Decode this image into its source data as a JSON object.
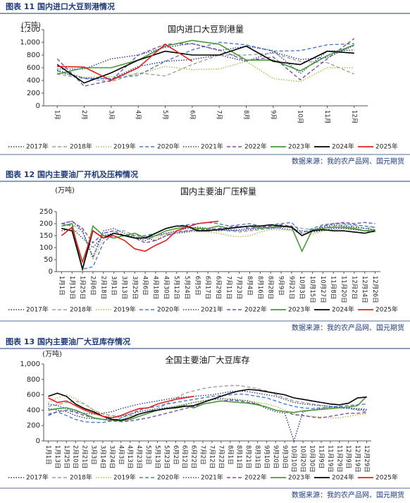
{
  "chart_data": [
    {
      "type": "line",
      "caption": "图表 11 国内进口大豆到港情况",
      "title": "国内进口大豆到港量",
      "y_unit": "(万吨)",
      "source": "数据来源：我的农产品网、国元期货",
      "grid": false,
      "categories": [
        "1月",
        "2月",
        "3月",
        "4月",
        "5月",
        "6月",
        "7月",
        "8月",
        "9月",
        "10月",
        "11月",
        "12月"
      ],
      "ylim": [
        0,
        1200
      ],
      "yticks": [
        0,
        200,
        400,
        600,
        800,
        {
          "value": 1000,
          "label": "1,000"
        },
        {
          "value": 1200,
          "label": "1,200"
        }
      ],
      "series": [
        {
          "name": "2017年",
          "color": "#1f3a93",
          "style": "dotted",
          "values": [
            560,
            440,
            420,
            620,
            700,
            730,
            800,
            700,
            850,
            730,
            760,
            950
          ]
        },
        {
          "name": "2018年",
          "color": "#a0a0a0",
          "style": "dashed",
          "values": [
            500,
            430,
            380,
            520,
            470,
            650,
            800,
            800,
            830,
            700,
            680,
            500
          ]
        },
        {
          "name": "2019年",
          "color": "#b5b84a",
          "style": "dotted",
          "values": [
            520,
            450,
            460,
            500,
            620,
            570,
            580,
            700,
            430,
            380,
            600,
            600
          ]
        },
        {
          "name": "2020年",
          "color": "#4a7cc7",
          "style": "dashed",
          "values": [
            550,
            430,
            430,
            480,
            700,
            880,
            1000,
            960,
            860,
            870,
            960,
            980
          ]
        },
        {
          "name": "2021年",
          "color": "#2c3e9e",
          "style": "dotted",
          "values": [
            580,
            580,
            740,
            800,
            920,
            980,
            870,
            940,
            870,
            510,
            860,
            880
          ]
        },
        {
          "name": "2022年",
          "color": "#7b4fa8",
          "style": "dashed",
          "values": [
            740,
            310,
            400,
            800,
            970,
            980,
            880,
            710,
            770,
            410,
            740,
            1060
          ]
        },
        {
          "name": "2023年",
          "color": "#4a9a3a",
          "style": "solid",
          "values": [
            500,
            600,
            600,
            720,
            940,
            1030,
            970,
            720,
            720,
            550,
            790,
            960
          ]
        },
        {
          "name": "2024年",
          "color": "#000000",
          "style": "solid",
          "values": [
            650,
            360,
            520,
            720,
            860,
            800,
            800,
            940,
            700,
            650,
            860,
            830
          ]
        },
        {
          "name": "2025年",
          "color": "#e02020",
          "style": "solid",
          "values": [
            620,
            610,
            400,
            600,
            970,
            700,
            null,
            null,
            null,
            null,
            null,
            null
          ]
        }
      ]
    },
    {
      "type": "line",
      "caption": "图表 12 国内主要油厂开机及压榨情况",
      "title": "国内主要油厂压榨量",
      "y_unit": "(万吨)",
      "source": "数据来源：我的农产品网、国元期货",
      "grid": false,
      "categories": [
        "1月1日",
        "1月13日",
        "1月25日",
        "2月6日",
        "2月18日",
        "3月1日",
        "3月13日",
        "3月25日",
        "4月6日",
        "4月18日",
        "4月30日",
        "5月12日",
        "5月24日",
        "6月5日",
        "6月17日",
        "6月29日",
        "7月11日",
        "7月23日",
        "8月4日",
        "8月16日",
        "8月28日",
        "9月9日",
        "9月21日",
        "10月3日",
        "10月15日",
        "10月27日",
        "11月8日",
        "11月20日",
        "12月2日",
        "12月14日",
        "12月26日"
      ],
      "ylim": [
        0,
        250
      ],
      "yticks": [
        0,
        50,
        100,
        150,
        200,
        250
      ],
      "series": [
        {
          "name": "2017年",
          "color": "#1f3a93",
          "style": "dotted",
          "values": [
            170,
            180,
            140,
            100,
            150,
            160,
            150,
            140,
            140,
            130,
            150,
            160,
            165,
            170,
            175,
            170,
            175,
            170,
            175,
            180,
            185,
            180,
            175,
            170,
            165,
            170,
            180,
            180,
            175,
            170,
            165
          ]
        },
        {
          "name": "2018年",
          "color": "#a0a0a0",
          "style": "dashed",
          "values": [
            190,
            195,
            170,
            60,
            160,
            170,
            170,
            150,
            145,
            150,
            155,
            160,
            170,
            170,
            170,
            175,
            170,
            165,
            170,
            175,
            180,
            185,
            190,
            180,
            175,
            180,
            190,
            195,
            190,
            180,
            185
          ]
        },
        {
          "name": "2019年",
          "color": "#b5b84a",
          "style": "dotted",
          "values": [
            180,
            175,
            165,
            50,
            140,
            160,
            150,
            145,
            140,
            140,
            160,
            165,
            170,
            165,
            165,
            160,
            150,
            145,
            150,
            165,
            175,
            175,
            170,
            160,
            155,
            170,
            175,
            180,
            175,
            170,
            165
          ]
        },
        {
          "name": "2020年",
          "color": "#4a7cc7",
          "style": "dashed",
          "values": [
            200,
            190,
            10,
            20,
            120,
            160,
            150,
            150,
            150,
            160,
            180,
            190,
            195,
            200,
            205,
            200,
            190,
            195,
            200,
            190,
            195,
            200,
            205,
            160,
            180,
            195,
            200,
            200,
            195,
            190,
            185
          ]
        },
        {
          "name": "2021年",
          "color": "#2c3e9e",
          "style": "dotted",
          "values": [
            200,
            210,
            170,
            60,
            170,
            180,
            160,
            140,
            130,
            150,
            160,
            170,
            180,
            185,
            180,
            175,
            170,
            175,
            180,
            185,
            180,
            185,
            190,
            150,
            175,
            185,
            195,
            190,
            185,
            180,
            175
          ]
        },
        {
          "name": "2022年",
          "color": "#7b4fa8",
          "style": "dashed",
          "values": [
            200,
            210,
            180,
            120,
            160,
            170,
            150,
            140,
            120,
            130,
            150,
            165,
            170,
            175,
            175,
            180,
            185,
            190,
            180,
            185,
            190,
            195,
            190,
            150,
            170,
            190,
            200,
            205,
            200,
            205,
            200
          ]
        },
        {
          "name": "2023年",
          "color": "#4a9a3a",
          "style": "solid",
          "values": [
            190,
            200,
            10,
            190,
            150,
            140,
            150,
            160,
            140,
            150,
            170,
            180,
            185,
            180,
            180,
            190,
            180,
            185,
            190,
            180,
            185,
            190,
            185,
            85,
            175,
            180,
            185,
            185,
            180,
            170,
            175
          ]
        },
        {
          "name": "2024年",
          "color": "#000000",
          "style": "solid",
          "values": [
            180,
            170,
            10,
            170,
            140,
            160,
            150,
            140,
            140,
            160,
            180,
            190,
            190,
            170,
            170,
            175,
            180,
            185,
            190,
            190,
            195,
            190,
            185,
            150,
            170,
            175,
            170,
            170,
            165,
            160,
            170
          ]
        },
        {
          "name": "2025年",
          "color": "#e02020",
          "style": "solid",
          "values": [
            150,
            185,
            40,
            170,
            140,
            150,
            130,
            95,
            85,
            110,
            130,
            170,
            185,
            200,
            205,
            210,
            null,
            null,
            null,
            null,
            null,
            null,
            null,
            null,
            null,
            null,
            null,
            null,
            null,
            null,
            null
          ]
        }
      ]
    },
    {
      "type": "line",
      "caption": "图表 13 国内主要油厂大豆库存情况",
      "title": "全国主要油厂大豆库存",
      "y_unit": "(万吨)",
      "source": "数据来源：我的农产品网、国元期货",
      "grid": false,
      "categories": [
        "1月1日",
        "1月13日",
        "1月25日",
        "2月10日",
        "2月21日",
        "3月3日",
        "3月14日",
        "3月24日",
        "4月3日",
        "4月13日",
        "4月23日",
        "5月3日",
        "5月13日",
        "5月23日",
        "6月2日",
        "6月12日",
        "6月22日",
        "7月2日",
        "7月12日",
        "7月22日",
        "8月1日",
        "8月11日",
        "8月21日",
        "8月31日",
        "9月10日",
        "9月20日",
        "9月30日",
        "10月10日",
        "10月20日",
        "10月30日",
        "11月9日",
        "11月19日",
        "11月29日",
        "12月9日",
        "12月19日",
        "12月29日"
      ],
      "ylim": [
        0,
        1000
      ],
      "yticks": [
        0,
        200,
        400,
        600,
        800,
        {
          "value": 1000,
          "label": "1,000"
        }
      ],
      "series": [
        {
          "name": "2017年",
          "color": "#1f3a93",
          "style": "dotted",
          "values": [
            420,
            400,
            380,
            330,
            300,
            290,
            280,
            300,
            320,
            350,
            380,
            400,
            420,
            430,
            450,
            470,
            500,
            520,
            540,
            550,
            540,
            530,
            520,
            480,
            420,
            380,
            360,
            0,
            380,
            400,
            420,
            440,
            430,
            420,
            410,
            400
          ]
        },
        {
          "name": "2018年",
          "color": "#a0a0a0",
          "style": "dashed",
          "values": [
            450,
            470,
            500,
            520,
            480,
            400,
            350,
            330,
            320,
            330,
            350,
            380,
            420,
            480,
            550,
            620,
            650,
            680,
            700,
            710,
            720,
            720,
            700,
            680,
            650,
            600,
            560,
            520,
            500,
            480,
            460,
            450,
            430,
            420,
            400,
            380
          ]
        },
        {
          "name": "2019年",
          "color": "#b5b84a",
          "style": "dotted",
          "values": [
            500,
            560,
            600,
            550,
            480,
            400,
            350,
            320,
            300,
            320,
            350,
            380,
            400,
            420,
            450,
            480,
            500,
            520,
            530,
            540,
            550,
            540,
            520,
            500,
            480,
            450,
            400,
            350,
            330,
            320,
            310,
            300,
            300,
            320,
            340,
            350
          ]
        },
        {
          "name": "2020年",
          "color": "#4a7cc7",
          "style": "dashed",
          "values": [
            350,
            380,
            330,
            280,
            250,
            240,
            240,
            260,
            300,
            350,
            400,
            430,
            450,
            480,
            500,
            520,
            540,
            560,
            580,
            590,
            600,
            610,
            600,
            580,
            560,
            520,
            480,
            450,
            430,
            420,
            430,
            440,
            450,
            460,
            470,
            480
          ]
        },
        {
          "name": "2021年",
          "color": "#2c3e9e",
          "style": "dotted",
          "values": [
            480,
            460,
            420,
            380,
            360,
            350,
            360,
            380,
            420,
            450,
            480,
            500,
            520,
            540,
            560,
            570,
            580,
            590,
            600,
            620,
            640,
            650,
            640,
            620,
            600,
            580,
            540,
            500,
            480,
            470,
            460,
            450,
            440,
            430,
            420,
            410
          ]
        },
        {
          "name": "2022年",
          "color": "#7b4fa8",
          "style": "dashed",
          "values": [
            330,
            380,
            400,
            370,
            330,
            300,
            280,
            260,
            250,
            260,
            280,
            300,
            330,
            360,
            390,
            420,
            450,
            480,
            500,
            520,
            530,
            520,
            500,
            480,
            440,
            400,
            380,
            340,
            330,
            310,
            300,
            320,
            340,
            360,
            360,
            370
          ]
        },
        {
          "name": "2023年",
          "color": "#4a9a3a",
          "style": "solid",
          "values": [
            400,
            420,
            430,
            400,
            350,
            300,
            280,
            270,
            260,
            280,
            320,
            360,
            400,
            420,
            440,
            460,
            430,
            480,
            500,
            520,
            510,
            500,
            490,
            470,
            440,
            400,
            380,
            370,
            390,
            400,
            410,
            420,
            430,
            440,
            460,
            580
          ]
        },
        {
          "name": "2024年",
          "color": "#000000",
          "style": "solid",
          "values": [
            580,
            620,
            580,
            480,
            420,
            380,
            320,
            280,
            270,
            300,
            350,
            380,
            400,
            420,
            430,
            450,
            460,
            500,
            540,
            580,
            620,
            650,
            670,
            660,
            640,
            620,
            600,
            560,
            540,
            520,
            500,
            480,
            470,
            490,
            560,
            570
          ]
        },
        {
          "name": "2025年",
          "color": "#e02020",
          "style": "solid",
          "values": [
            560,
            500,
            520,
            460,
            400,
            360,
            320,
            300,
            330,
            380,
            420,
            430,
            480,
            510,
            540,
            560,
            580,
            null,
            null,
            null,
            null,
            null,
            null,
            null,
            null,
            null,
            null,
            null,
            null,
            null,
            null,
            null,
            null,
            null,
            null,
            null
          ]
        }
      ]
    }
  ]
}
